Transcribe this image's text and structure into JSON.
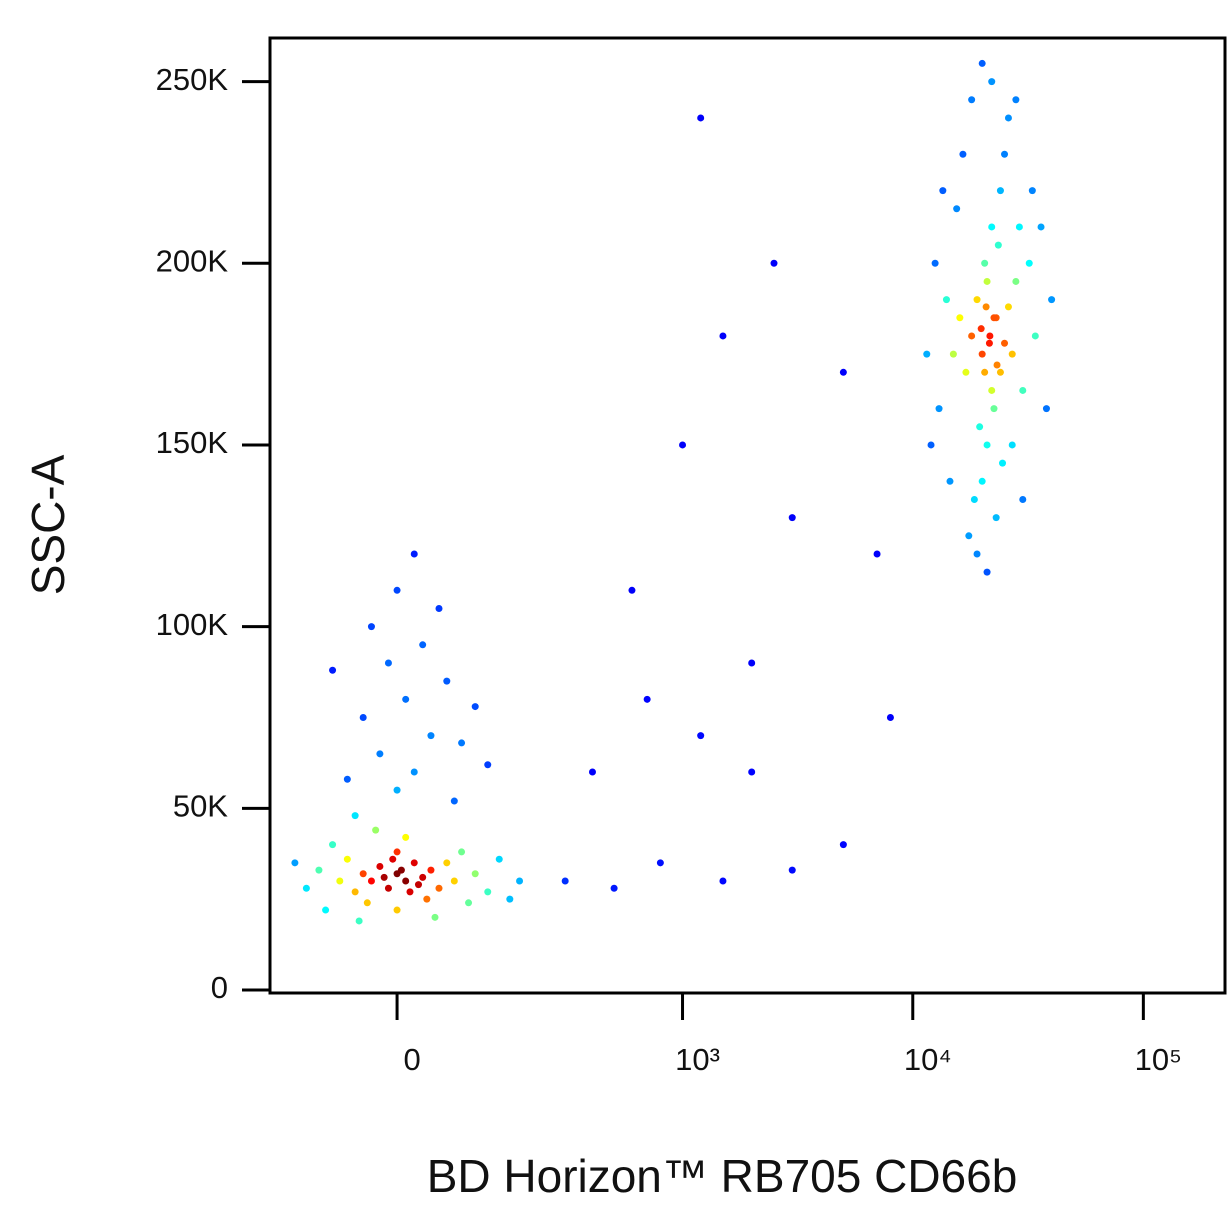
{
  "chart_data": {
    "type": "scatter",
    "x_label": "BD Horizon™ RB705 CD66b",
    "y_label": "SSC-A",
    "xscale": "biexponential",
    "xlim": [
      -190,
      226000
    ],
    "ylim": [
      0,
      262000
    ],
    "xticks": [
      0,
      {
        "value": 1000,
        "label": "10³"
      },
      {
        "value": 10000,
        "label": "10⁴"
      },
      {
        "value": 100000,
        "label": "10⁵"
      }
    ],
    "yticks": [
      0,
      {
        "value": 50000,
        "label": "50K"
      },
      {
        "value": 100000,
        "label": "100K"
      },
      {
        "value": 150000,
        "label": "150K"
      },
      {
        "value": 200000,
        "label": "200K"
      },
      {
        "value": 250000,
        "label": "250K"
      }
    ],
    "color": "density",
    "x": [
      0,
      10,
      -20,
      20,
      -10,
      30,
      -30,
      5,
      15,
      -5,
      40,
      -40,
      25,
      -15,
      0,
      50,
      -50,
      60,
      -60,
      35,
      -35,
      70,
      -70,
      80,
      -80,
      90,
      -90,
      100,
      -100,
      120,
      -120,
      140,
      -140,
      160,
      10,
      -25,
      45,
      -45,
      0,
      180,
      0,
      20,
      -20,
      40,
      -40,
      10,
      60,
      -10,
      30,
      -30,
      50,
      0,
      80,
      -60,
      100,
      -80,
      20,
      120,
      70,
      -50,
      300,
      500,
      800,
      1500,
      3000,
      5000,
      400,
      700,
      1200,
      2000,
      1000,
      1500,
      2500,
      1200,
      3000,
      5000,
      7000,
      600,
      2000,
      8000,
      21600,
      20000,
      23000,
      19000,
      24000,
      22000,
      21000,
      18000,
      25000,
      20500,
      22500,
      17000,
      26000,
      19500,
      23500,
      16000,
      27000,
      21000,
      22000,
      15000,
      28000,
      20000,
      24000,
      14000,
      30000,
      18500,
      25000,
      13000,
      32000,
      17500,
      26000,
      12500,
      34000,
      19000,
      22000,
      12000,
      36000,
      21000,
      28000,
      11500,
      38000,
      16500,
      20000,
      14500,
      33000,
      15500,
      30000,
      23000,
      18000,
      27000,
      40000,
      13500,
      24500,
      29000,
      20500,
      22500,
      21500,
      19800,
      23200,
      20800
    ],
    "y": [
      32000,
      30000,
      34000,
      35000,
      28000,
      31000,
      30000,
      33000,
      27000,
      36000,
      33000,
      32000,
      29000,
      31000,
      38000,
      28000,
      27000,
      35000,
      36000,
      25000,
      24000,
      30000,
      30000,
      38000,
      40000,
      24000,
      22000,
      32000,
      33000,
      27000,
      28000,
      36000,
      35000,
      25000,
      42000,
      44000,
      20000,
      19000,
      22000,
      30000,
      55000,
      60000,
      65000,
      70000,
      75000,
      80000,
      85000,
      90000,
      95000,
      100000,
      105000,
      110000,
      68000,
      58000,
      78000,
      88000,
      120000,
      62000,
      52000,
      48000,
      30000,
      28000,
      35000,
      30000,
      33000,
      40000,
      60000,
      80000,
      70000,
      90000,
      150000,
      180000,
      200000,
      240000,
      130000,
      170000,
      120000,
      110000,
      60000,
      75000,
      180000,
      175000,
      185000,
      190000,
      170000,
      165000,
      195000,
      180000,
      178000,
      200000,
      160000,
      170000,
      188000,
      155000,
      205000,
      185000,
      175000,
      150000,
      210000,
      175000,
      195000,
      140000,
      220000,
      190000,
      165000,
      135000,
      230000,
      160000,
      200000,
      125000,
      240000,
      200000,
      180000,
      120000,
      250000,
      150000,
      210000,
      115000,
      245000,
      175000,
      160000,
      230000,
      255000,
      140000,
      220000,
      215000,
      135000,
      130000,
      245000,
      150000,
      190000,
      220000,
      145000,
      210000,
      170000,
      185000,
      178000,
      182000,
      172000,
      188000
    ]
  }
}
